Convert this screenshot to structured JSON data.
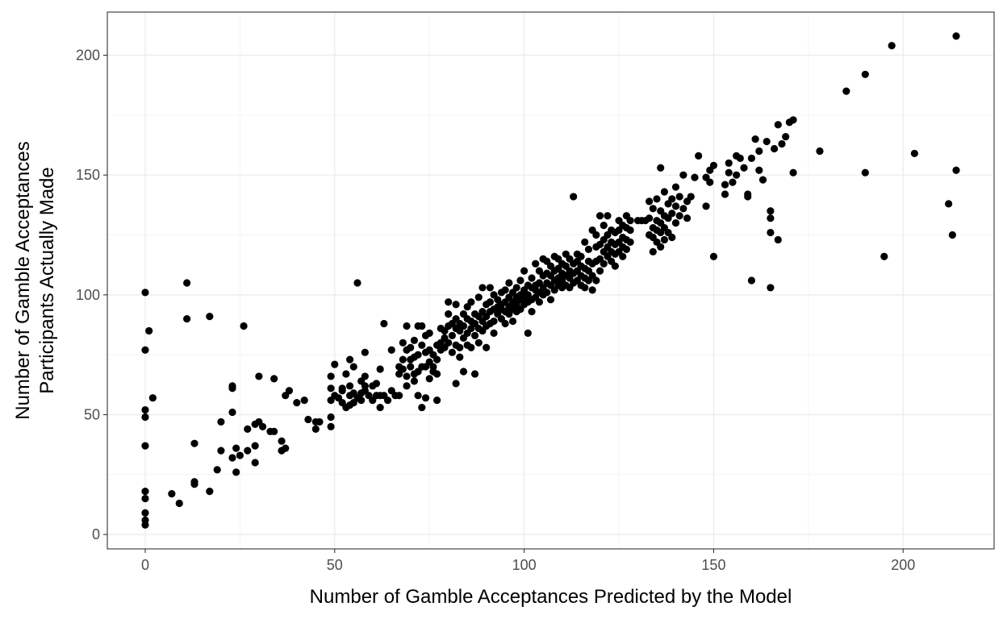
{
  "chart_data": {
    "type": "scatter",
    "title": "",
    "xlabel": "Number of Gamble Acceptances Predicted by the Model",
    "ylabel_lines": [
      "Number of Gamble Acceptances",
      "Participants Actually Made"
    ],
    "xlim": [
      -10,
      224
    ],
    "ylim": [
      -6,
      218
    ],
    "x_ticks": [
      0,
      50,
      100,
      150,
      200
    ],
    "y_ticks": [
      0,
      50,
      100,
      150,
      200
    ],
    "grid": true,
    "theme": "bw",
    "point_color": "#000000",
    "points": [
      [
        0,
        4
      ],
      [
        0,
        6
      ],
      [
        0,
        9
      ],
      [
        0,
        15
      ],
      [
        0,
        18
      ],
      [
        0,
        37
      ],
      [
        0,
        49
      ],
      [
        0,
        52
      ],
      [
        0,
        77
      ],
      [
        0,
        101
      ],
      [
        1,
        85
      ],
      [
        2,
        57
      ],
      [
        7,
        17
      ],
      [
        9,
        13
      ],
      [
        11,
        105
      ],
      [
        11,
        90
      ],
      [
        13,
        38
      ],
      [
        13,
        21
      ],
      [
        13,
        22
      ],
      [
        17,
        91
      ],
      [
        17,
        18
      ],
      [
        19,
        27
      ],
      [
        20,
        35
      ],
      [
        20,
        47
      ],
      [
        23,
        32
      ],
      [
        23,
        51
      ],
      [
        23,
        61
      ],
      [
        23,
        62
      ],
      [
        24,
        26
      ],
      [
        24,
        36
      ],
      [
        25,
        33
      ],
      [
        26,
        87
      ],
      [
        27,
        35
      ],
      [
        27,
        44
      ],
      [
        29,
        30
      ],
      [
        29,
        37
      ],
      [
        29,
        46
      ],
      [
        30,
        47
      ],
      [
        30,
        66
      ],
      [
        31,
        45
      ],
      [
        33,
        43
      ],
      [
        34,
        43
      ],
      [
        34,
        65
      ],
      [
        36,
        35
      ],
      [
        36,
        39
      ],
      [
        37,
        36
      ],
      [
        37,
        58
      ],
      [
        38,
        60
      ],
      [
        40,
        55
      ],
      [
        42,
        56
      ],
      [
        43,
        48
      ],
      [
        45,
        44
      ],
      [
        45,
        47
      ],
      [
        46,
        47
      ],
      [
        49,
        45
      ],
      [
        49,
        49
      ],
      [
        49,
        56
      ],
      [
        49,
        61
      ],
      [
        49,
        66
      ],
      [
        50,
        58
      ],
      [
        50,
        71
      ],
      [
        51,
        57
      ],
      [
        52,
        55
      ],
      [
        52,
        60
      ],
      [
        52,
        61
      ],
      [
        53,
        53
      ],
      [
        53,
        67
      ],
      [
        54,
        54
      ],
      [
        54,
        58
      ],
      [
        54,
        62
      ],
      [
        54,
        73
      ],
      [
        55,
        55
      ],
      [
        55,
        59
      ],
      [
        55,
        70
      ],
      [
        56,
        105
      ],
      [
        56,
        57
      ],
      [
        57,
        56
      ],
      [
        57,
        59
      ],
      [
        57,
        64
      ],
      [
        58,
        60
      ],
      [
        58,
        62
      ],
      [
        58,
        66
      ],
      [
        58,
        76
      ],
      [
        59,
        58
      ],
      [
        60,
        56
      ],
      [
        60,
        62
      ],
      [
        61,
        58
      ],
      [
        61,
        63
      ],
      [
        62,
        53
      ],
      [
        62,
        58
      ],
      [
        62,
        69
      ],
      [
        63,
        58
      ],
      [
        63,
        88
      ],
      [
        64,
        56
      ],
      [
        65,
        60
      ],
      [
        65,
        77
      ],
      [
        66,
        58
      ],
      [
        67,
        58
      ],
      [
        67,
        67
      ],
      [
        67,
        70
      ],
      [
        68,
        69
      ],
      [
        68,
        73
      ],
      [
        68,
        80
      ],
      [
        69,
        62
      ],
      [
        69,
        66
      ],
      [
        69,
        77
      ],
      [
        69,
        87
      ],
      [
        70,
        70
      ],
      [
        70,
        73
      ],
      [
        70,
        78
      ],
      [
        71,
        64
      ],
      [
        71,
        67
      ],
      [
        71,
        74
      ],
      [
        71,
        81
      ],
      [
        72,
        58
      ],
      [
        72,
        68
      ],
      [
        72,
        75
      ],
      [
        72,
        87
      ],
      [
        73,
        53
      ],
      [
        73,
        70
      ],
      [
        73,
        79
      ],
      [
        73,
        87
      ],
      [
        74,
        57
      ],
      [
        74,
        70
      ],
      [
        74,
        76
      ],
      [
        74,
        83
      ],
      [
        75,
        65
      ],
      [
        75,
        72
      ],
      [
        75,
        77
      ],
      [
        75,
        84
      ],
      [
        76,
        68
      ],
      [
        76,
        70
      ],
      [
        76,
        75
      ],
      [
        77,
        67
      ],
      [
        77,
        56
      ],
      [
        77,
        73
      ],
      [
        77,
        79
      ],
      [
        78,
        77
      ],
      [
        78,
        80
      ],
      [
        78,
        86
      ],
      [
        79,
        78
      ],
      [
        79,
        82
      ],
      [
        79,
        85
      ],
      [
        80,
        80
      ],
      [
        80,
        87
      ],
      [
        80,
        92
      ],
      [
        80,
        97
      ],
      [
        81,
        76
      ],
      [
        81,
        83
      ],
      [
        81,
        88
      ],
      [
        82,
        63
      ],
      [
        82,
        79
      ],
      [
        82,
        86
      ],
      [
        82,
        90
      ],
      [
        82,
        96
      ],
      [
        83,
        74
      ],
      [
        83,
        78
      ],
      [
        83,
        85
      ],
      [
        83,
        88
      ],
      [
        84,
        68
      ],
      [
        84,
        82
      ],
      [
        84,
        87
      ],
      [
        84,
        92
      ],
      [
        85,
        79
      ],
      [
        85,
        84
      ],
      [
        85,
        90
      ],
      [
        85,
        95
      ],
      [
        86,
        78
      ],
      [
        86,
        86
      ],
      [
        86,
        89
      ],
      [
        86,
        97
      ],
      [
        87,
        67
      ],
      [
        87,
        83
      ],
      [
        87,
        88
      ],
      [
        87,
        92
      ],
      [
        88,
        80
      ],
      [
        88,
        86
      ],
      [
        88,
        91
      ],
      [
        88,
        99
      ],
      [
        89,
        85
      ],
      [
        89,
        89
      ],
      [
        89,
        93
      ],
      [
        89,
        103
      ],
      [
        90,
        78
      ],
      [
        90,
        87
      ],
      [
        90,
        91
      ],
      [
        90,
        96
      ],
      [
        91,
        88
      ],
      [
        91,
        93
      ],
      [
        91,
        97
      ],
      [
        91,
        103
      ],
      [
        92,
        84
      ],
      [
        92,
        89
      ],
      [
        92,
        94
      ],
      [
        92,
        100
      ],
      [
        93,
        92
      ],
      [
        93,
        95
      ],
      [
        93,
        98
      ],
      [
        94,
        90
      ],
      [
        94,
        94
      ],
      [
        94,
        96
      ],
      [
        94,
        101
      ],
      [
        95,
        88
      ],
      [
        95,
        93
      ],
      [
        95,
        97
      ],
      [
        95,
        102
      ],
      [
        96,
        92
      ],
      [
        96,
        95
      ],
      [
        96,
        99
      ],
      [
        96,
        105
      ],
      [
        97,
        89
      ],
      [
        97,
        94
      ],
      [
        97,
        97
      ],
      [
        97,
        101
      ],
      [
        98,
        93
      ],
      [
        98,
        96
      ],
      [
        98,
        99
      ],
      [
        98,
        103
      ],
      [
        99,
        94
      ],
      [
        99,
        98
      ],
      [
        99,
        100
      ],
      [
        99,
        106
      ],
      [
        100,
        96
      ],
      [
        100,
        99
      ],
      [
        100,
        102
      ],
      [
        100,
        110
      ],
      [
        101,
        84
      ],
      [
        101,
        97
      ],
      [
        101,
        100
      ],
      [
        101,
        104
      ],
      [
        102,
        93
      ],
      [
        102,
        98
      ],
      [
        102,
        103
      ],
      [
        102,
        107
      ],
      [
        103,
        99
      ],
      [
        103,
        102
      ],
      [
        103,
        104
      ],
      [
        103,
        113
      ],
      [
        104,
        97
      ],
      [
        104,
        101
      ],
      [
        104,
        105
      ],
      [
        104,
        110
      ],
      [
        105,
        100
      ],
      [
        105,
        103
      ],
      [
        105,
        108
      ],
      [
        105,
        115
      ],
      [
        106,
        101
      ],
      [
        106,
        105
      ],
      [
        106,
        109
      ],
      [
        106,
        114
      ],
      [
        107,
        98
      ],
      [
        107,
        104
      ],
      [
        107,
        108
      ],
      [
        107,
        112
      ],
      [
        108,
        102
      ],
      [
        108,
        106
      ],
      [
        108,
        110
      ],
      [
        108,
        116
      ],
      [
        109,
        104
      ],
      [
        109,
        107
      ],
      [
        109,
        111
      ],
      [
        109,
        115
      ],
      [
        110,
        103
      ],
      [
        110,
        106
      ],
      [
        110,
        109
      ],
      [
        110,
        113
      ],
      [
        111,
        104
      ],
      [
        111,
        108
      ],
      [
        111,
        112
      ],
      [
        111,
        117
      ],
      [
        112,
        103
      ],
      [
        112,
        107
      ],
      [
        112,
        110
      ],
      [
        112,
        115
      ],
      [
        113,
        141
      ],
      [
        113,
        105
      ],
      [
        113,
        109
      ],
      [
        113,
        113
      ],
      [
        114,
        106
      ],
      [
        114,
        110
      ],
      [
        114,
        114
      ],
      [
        114,
        117
      ],
      [
        115,
        104
      ],
      [
        115,
        108
      ],
      [
        115,
        112
      ],
      [
        115,
        116
      ],
      [
        116,
        103
      ],
      [
        116,
        107
      ],
      [
        116,
        111
      ],
      [
        116,
        122
      ],
      [
        117,
        106
      ],
      [
        117,
        110
      ],
      [
        117,
        114
      ],
      [
        117,
        119
      ],
      [
        118,
        102
      ],
      [
        118,
        108
      ],
      [
        118,
        113
      ],
      [
        118,
        127
      ],
      [
        119,
        106
      ],
      [
        119,
        114
      ],
      [
        119,
        120
      ],
      [
        119,
        125
      ],
      [
        120,
        110
      ],
      [
        120,
        115
      ],
      [
        120,
        121
      ],
      [
        120,
        133
      ],
      [
        121,
        113
      ],
      [
        121,
        118
      ],
      [
        121,
        123
      ],
      [
        121,
        129
      ],
      [
        122,
        116
      ],
      [
        122,
        120
      ],
      [
        122,
        125
      ],
      [
        122,
        133
      ],
      [
        123,
        114
      ],
      [
        123,
        118
      ],
      [
        123,
        122
      ],
      [
        123,
        127
      ],
      [
        124,
        112
      ],
      [
        124,
        117
      ],
      [
        124,
        121
      ],
      [
        124,
        126
      ],
      [
        125,
        118
      ],
      [
        125,
        122
      ],
      [
        125,
        127
      ],
      [
        125,
        131
      ],
      [
        126,
        116
      ],
      [
        126,
        120
      ],
      [
        126,
        124
      ],
      [
        126,
        129
      ],
      [
        127,
        119
      ],
      [
        127,
        123
      ],
      [
        127,
        128
      ],
      [
        127,
        133
      ],
      [
        128,
        122
      ],
      [
        128,
        127
      ],
      [
        128,
        131
      ],
      [
        130,
        131
      ],
      [
        131,
        131
      ],
      [
        132,
        131
      ],
      [
        133,
        125
      ],
      [
        133,
        132
      ],
      [
        133,
        139
      ],
      [
        134,
        118
      ],
      [
        134,
        124
      ],
      [
        134,
        128
      ],
      [
        134,
        136
      ],
      [
        135,
        122
      ],
      [
        135,
        127
      ],
      [
        135,
        131
      ],
      [
        135,
        140
      ],
      [
        136,
        120
      ],
      [
        136,
        126
      ],
      [
        136,
        130
      ],
      [
        136,
        135
      ],
      [
        136,
        153
      ],
      [
        137,
        123
      ],
      [
        137,
        128
      ],
      [
        137,
        133
      ],
      [
        137,
        143
      ],
      [
        138,
        126
      ],
      [
        138,
        132
      ],
      [
        138,
        138
      ],
      [
        139,
        124
      ],
      [
        139,
        134
      ],
      [
        139,
        140
      ],
      [
        140,
        130
      ],
      [
        140,
        137
      ],
      [
        140,
        145
      ],
      [
        141,
        133
      ],
      [
        141,
        141
      ],
      [
        142,
        136
      ],
      [
        142,
        150
      ],
      [
        143,
        132
      ],
      [
        143,
        139
      ],
      [
        144,
        141
      ],
      [
        145,
        149
      ],
      [
        146,
        158
      ],
      [
        148,
        149
      ],
      [
        148,
        137
      ],
      [
        149,
        147
      ],
      [
        149,
        152
      ],
      [
        150,
        116
      ],
      [
        150,
        154
      ],
      [
        153,
        142
      ],
      [
        153,
        146
      ],
      [
        154,
        151
      ],
      [
        154,
        155
      ],
      [
        155,
        147
      ],
      [
        156,
        150
      ],
      [
        156,
        158
      ],
      [
        157,
        157
      ],
      [
        158,
        153
      ],
      [
        159,
        142
      ],
      [
        159,
        141
      ],
      [
        160,
        106
      ],
      [
        160,
        157
      ],
      [
        161,
        165
      ],
      [
        162,
        152
      ],
      [
        162,
        160
      ],
      [
        163,
        148
      ],
      [
        164,
        164
      ],
      [
        165,
        103
      ],
      [
        165,
        126
      ],
      [
        165,
        132
      ],
      [
        165,
        135
      ],
      [
        166,
        161
      ],
      [
        167,
        123
      ],
      [
        167,
        171
      ],
      [
        168,
        163
      ],
      [
        169,
        166
      ],
      [
        170,
        172
      ],
      [
        171,
        173
      ],
      [
        171,
        151
      ],
      [
        178,
        160
      ],
      [
        185,
        185
      ],
      [
        190,
        192
      ],
      [
        190,
        151
      ],
      [
        195,
        116
      ],
      [
        197,
        204
      ],
      [
        203,
        159
      ],
      [
        212,
        138
      ],
      [
        213,
        125
      ],
      [
        214,
        152
      ],
      [
        214,
        208
      ]
    ]
  },
  "axis_labels": {
    "x_ticks": [
      "0",
      "50",
      "100",
      "150",
      "200"
    ],
    "y_ticks": [
      "0",
      "50",
      "100",
      "150",
      "200"
    ],
    "xlabel": "Number of Gamble Acceptances Predicted by the Model",
    "ylabel_line1": "Number of Gamble Acceptances",
    "ylabel_line2": "Participants Actually Made"
  }
}
